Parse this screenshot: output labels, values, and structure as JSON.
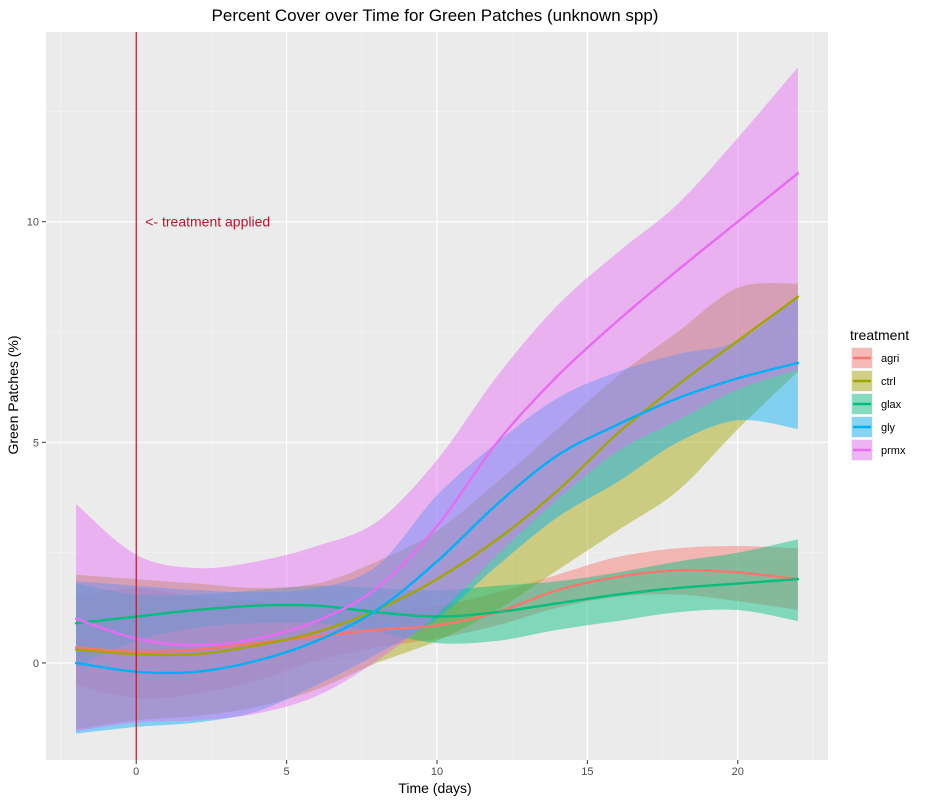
{
  "chart_data": {
    "type": "line",
    "title": "Percent Cover over Time for Green Patches (unknown spp)",
    "xlabel": "Time (days)",
    "ylabel": "Green Patches (%)",
    "xlim": [
      -3,
      23
    ],
    "ylim": [
      -2.2,
      14.3
    ],
    "x_ticks": [
      0,
      5,
      10,
      15,
      20
    ],
    "y_ticks": [
      0,
      5,
      10
    ],
    "x_tick_labels": [
      "0",
      "5",
      "10",
      "15",
      "20"
    ],
    "y_tick_labels": [
      "0",
      "5",
      "10"
    ],
    "grid": true,
    "legend": {
      "title": "treatment",
      "position": "right"
    },
    "annotation": {
      "text": "<- treatment applied",
      "x": 0.3,
      "y": 10.0,
      "color": "#b2182b"
    },
    "vline": {
      "x": 0,
      "color": "#b2182b"
    },
    "series": [
      {
        "name": "agri",
        "color": "#f8766d",
        "x": [
          -2,
          0,
          2,
          4,
          6,
          8,
          10,
          12,
          14,
          16,
          18,
          20,
          22
        ],
        "y": [
          0.35,
          0.25,
          0.3,
          0.45,
          0.6,
          0.75,
          0.85,
          1.15,
          1.65,
          1.95,
          2.1,
          2.05,
          1.9
        ],
        "lower": [
          -0.5,
          -0.8,
          -0.7,
          -0.4,
          0.05,
          0.35,
          0.55,
          0.85,
          1.25,
          1.5,
          1.55,
          1.4,
          1.2
        ],
        "upper": [
          1.5,
          1.7,
          1.5,
          1.4,
          1.3,
          1.2,
          1.3,
          1.6,
          2.0,
          2.4,
          2.6,
          2.65,
          2.6
        ]
      },
      {
        "name": "ctrl",
        "color": "#a3a500",
        "x": [
          -2,
          0,
          2,
          4,
          6,
          8,
          10,
          12,
          14,
          16,
          18,
          20,
          22
        ],
        "y": [
          0.3,
          0.2,
          0.2,
          0.4,
          0.7,
          1.2,
          1.9,
          2.8,
          3.9,
          5.2,
          6.3,
          7.3,
          8.3
        ],
        "lower": [
          -1.5,
          -1.3,
          -1.2,
          -1.0,
          -0.6,
          0.0,
          0.5,
          1.2,
          2.1,
          3.0,
          3.9,
          5.3,
          6.6
        ],
        "upper": [
          2.0,
          1.9,
          1.8,
          1.7,
          1.8,
          2.3,
          3.0,
          4.1,
          5.3,
          6.5,
          7.5,
          8.5,
          8.6
        ]
      },
      {
        "name": "glax",
        "color": "#00bf7d",
        "x": [
          -2,
          0,
          2,
          4,
          6,
          8,
          10,
          12,
          14,
          16,
          18,
          20,
          22
        ],
        "y": [
          0.9,
          1.05,
          1.2,
          1.3,
          1.3,
          1.15,
          1.05,
          1.15,
          1.35,
          1.55,
          1.7,
          1.8,
          1.9
        ],
        "lower": [
          -0.1,
          0.5,
          0.8,
          0.9,
          0.9,
          0.7,
          0.45,
          0.5,
          0.75,
          0.95,
          1.15,
          1.2,
          0.95
        ],
        "upper": [
          1.8,
          1.55,
          1.55,
          1.65,
          1.75,
          1.7,
          1.65,
          1.75,
          1.85,
          2.05,
          2.3,
          2.5,
          2.8
        ]
      },
      {
        "name": "gly",
        "color": "#00b0f6",
        "x": [
          -2,
          0,
          2,
          4,
          6,
          8,
          10,
          12,
          14,
          16,
          18,
          20,
          22
        ],
        "y": [
          0.0,
          -0.2,
          -0.2,
          0.05,
          0.5,
          1.2,
          2.3,
          3.6,
          4.7,
          5.4,
          6.0,
          6.45,
          6.8
        ],
        "lower": [
          -1.6,
          -1.45,
          -1.35,
          -1.1,
          -0.5,
          0.2,
          1.0,
          2.2,
          3.3,
          4.1,
          5.0,
          5.5,
          5.3
        ],
        "upper": [
          1.85,
          1.75,
          1.65,
          1.6,
          1.7,
          2.2,
          3.8,
          5.0,
          6.0,
          6.6,
          7.0,
          7.3,
          8.3
        ]
      },
      {
        "name": "prmx",
        "color": "#e76bf3",
        "x": [
          -2,
          0,
          2,
          4,
          6,
          8,
          10,
          12,
          14,
          16,
          18,
          20,
          22
        ],
        "y": [
          1.0,
          0.55,
          0.4,
          0.55,
          0.95,
          1.7,
          3.1,
          5.0,
          6.5,
          7.75,
          8.9,
          10.0,
          11.1
        ],
        "lower": [
          -1.55,
          -1.35,
          -1.3,
          -1.15,
          -0.75,
          0.05,
          1.1,
          2.45,
          3.7,
          4.8,
          5.5,
          6.2,
          6.65
        ],
        "upper": [
          3.6,
          2.45,
          2.15,
          2.3,
          2.65,
          3.2,
          4.6,
          6.5,
          8.1,
          9.3,
          10.4,
          11.9,
          13.5
        ]
      }
    ]
  }
}
